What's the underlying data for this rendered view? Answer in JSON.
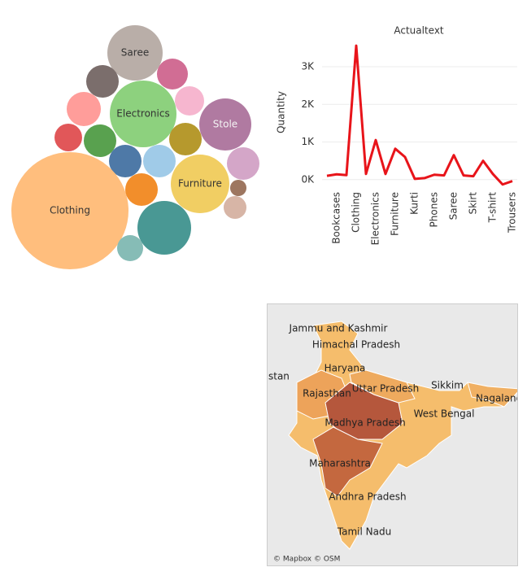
{
  "chart_data": [
    {
      "type": "bubble",
      "categories": [
        "Saree",
        null,
        null,
        "Electronics",
        null,
        null,
        "Stole",
        null,
        null,
        null,
        null,
        null,
        null,
        "Furniture",
        null,
        null,
        "Clothing",
        null,
        null,
        null
      ],
      "values": [
        794,
        275,
        248,
        1154,
        222,
        303,
        703,
        198,
        275,
        275,
        275,
        275,
        275,
        890,
        275,
        69,
        3560,
        135,
        748,
        176
      ],
      "colors": [
        "#b9aea8",
        "#7b6e6c",
        "#d16d94",
        "#8dd17e",
        "#f6b6cf",
        "#ff9d9a",
        "#b07aa1",
        "#e15759",
        "#59a14f",
        "#b6992d",
        "#4e79a7",
        "#a0cbe8",
        "#d4a6c8",
        "#f1ce63",
        "#f28e2b",
        "#9d7660",
        "#ffbe7d",
        "#d7b5a6",
        "#499894",
        "#86bcb6"
      ]
    },
    {
      "type": "line",
      "title": "Actualtext",
      "y_label": "Quantity",
      "categories": [
        null,
        "Bookcases",
        null,
        "Clothing",
        null,
        "Electronics",
        null,
        "Furniture",
        null,
        "Kurti",
        null,
        "Phones",
        null,
        "Saree",
        null,
        "Skirt",
        null,
        "T-shirt",
        null,
        "Trousers"
      ],
      "series": [
        {
          "name": "Quantity",
          "color": "#e8141a",
          "values": [
            100,
            140,
            120,
            3560,
            150,
            1050,
            150,
            820,
            600,
            20,
            40,
            130,
            110,
            650,
            110,
            90,
            500,
            150,
            -130,
            -40
          ]
        }
      ],
      "ylim": [
        -200,
        3800
      ],
      "yticks": [
        {
          "value": 0,
          "label": "0K"
        },
        {
          "value": 1000,
          "label": "1K"
        },
        {
          "value": 2000,
          "label": "2K"
        },
        {
          "value": 3000,
          "label": "3K"
        }
      ],
      "grid": true
    }
  ],
  "map": {
    "labels": [
      "Jammu and Kashmir",
      "Himachal Pradesh",
      "Haryana",
      "stan",
      "Uttar Pradesh",
      "Rajasthan",
      "Sikkim",
      "Nagaland",
      "Madhya Pradesh",
      "West Bengal",
      "Maharashtra",
      "Andhra Pradesh",
      "Tamil Nadu"
    ],
    "attribution": "© Mapbox © OSM"
  }
}
